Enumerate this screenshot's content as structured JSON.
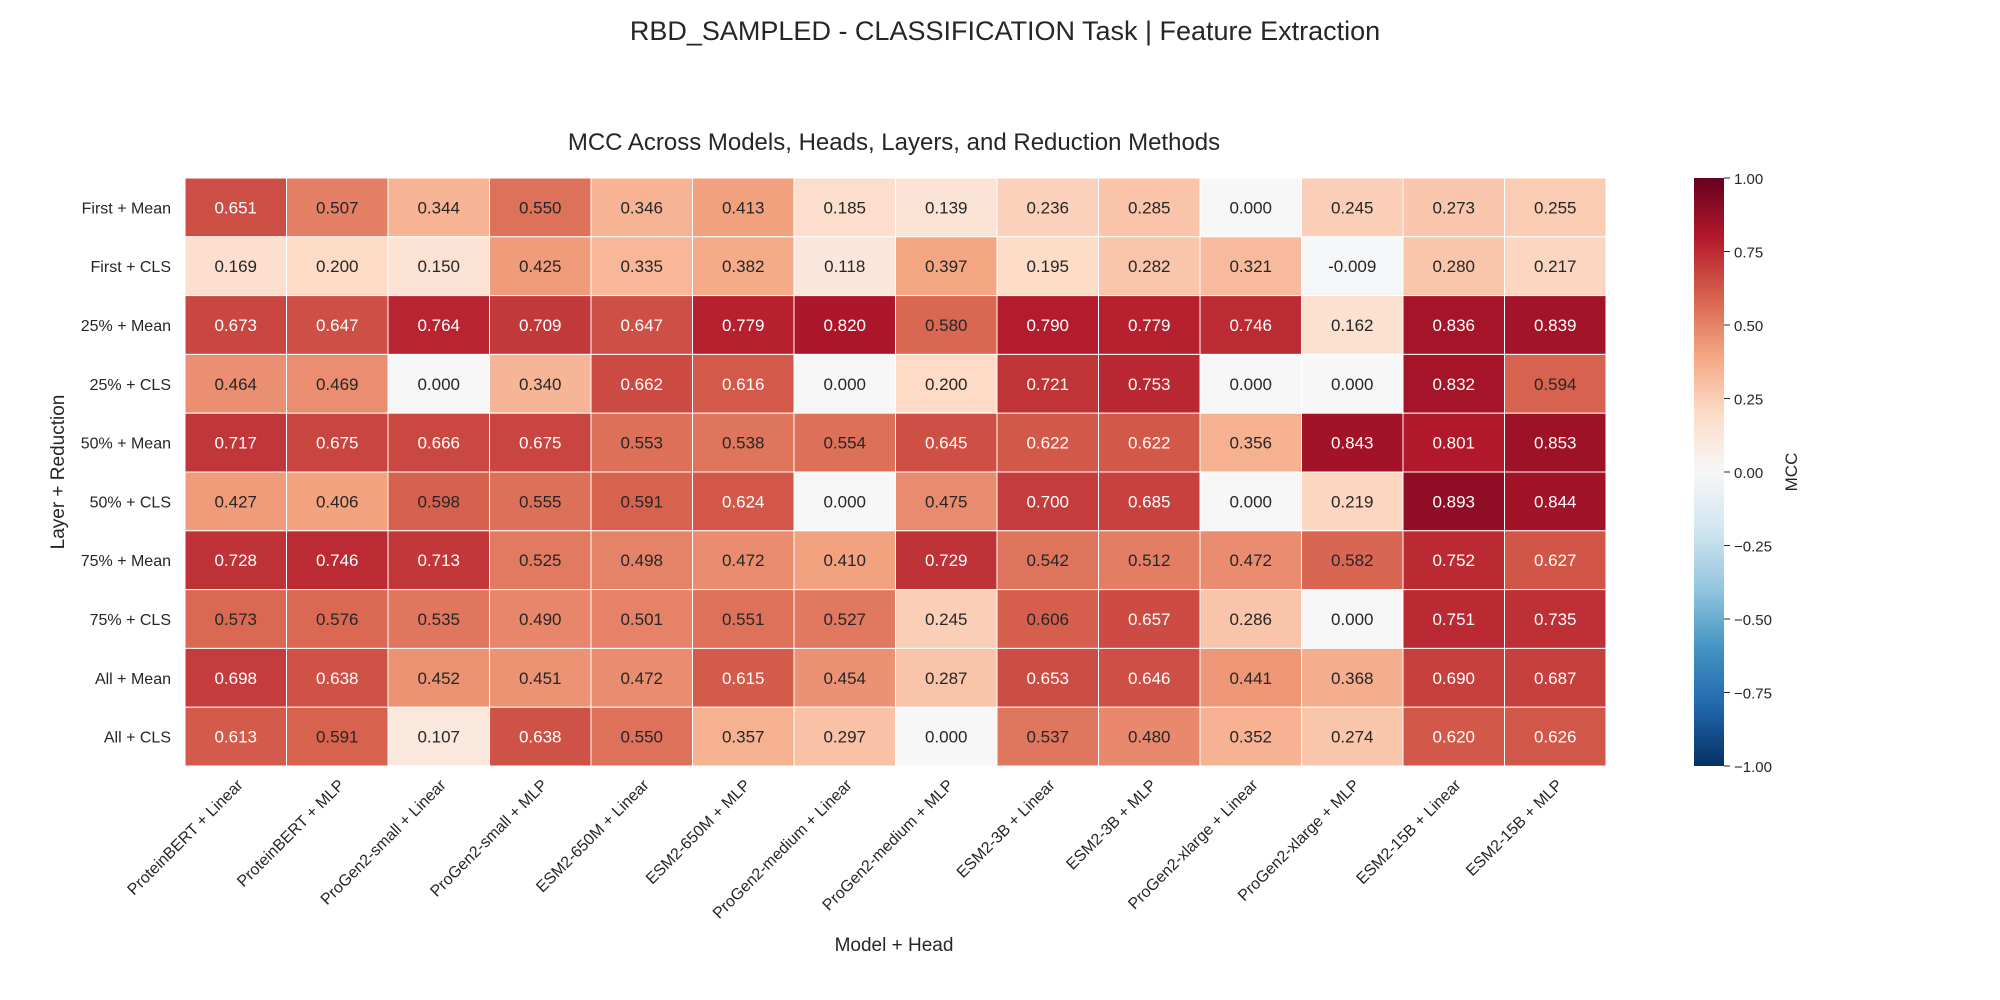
{
  "figure": {
    "suptitle": "RBD_SAMPLED - CLASSIFICATION Task | Feature Extraction"
  },
  "chart_data": {
    "type": "heatmap",
    "title": "MCC Across Models, Heads, Layers, and Reduction Methods",
    "xlabel": "Model + Head",
    "ylabel": "Layer + Reduction",
    "colorbar_label": "MCC",
    "vmin": -1.0,
    "vmax": 1.0,
    "colormap": "RdBu_r",
    "colorbar_ticks": [
      "1.00",
      "0.75",
      "0.50",
      "0.25",
      "0.00",
      "−0.25",
      "−0.50",
      "−0.75",
      "−1.00"
    ],
    "columns": [
      "ProteinBERT + Linear",
      "ProteinBERT + MLP",
      "ProGen2-small + Linear",
      "ProGen2-small + MLP",
      "ESM2-650M + Linear",
      "ESM2-650M + MLP",
      "ProGen2-medium + Linear",
      "ProGen2-medium + MLP",
      "ESM2-3B + Linear",
      "ESM2-3B + MLP",
      "ProGen2-xlarge + Linear",
      "ProGen2-xlarge + MLP",
      "ESM2-15B + Linear",
      "ESM2-15B + MLP"
    ],
    "rows": [
      "First + Mean",
      "First + CLS",
      "25% + Mean",
      "25% + CLS",
      "50% + Mean",
      "50% + CLS",
      "75% + Mean",
      "75% + CLS",
      "All + Mean",
      "All + CLS"
    ],
    "values": [
      [
        "0.651",
        "0.507",
        "0.344",
        "0.550",
        "0.346",
        "0.413",
        "0.185",
        "0.139",
        "0.236",
        "0.285",
        "0.000",
        "0.245",
        "0.273",
        "0.255"
      ],
      [
        "0.169",
        "0.200",
        "0.150",
        "0.425",
        "0.335",
        "0.382",
        "0.118",
        "0.397",
        "0.195",
        "0.282",
        "0.321",
        "-0.009",
        "0.280",
        "0.217"
      ],
      [
        "0.673",
        "0.647",
        "0.764",
        "0.709",
        "0.647",
        "0.779",
        "0.820",
        "0.580",
        "0.790",
        "0.779",
        "0.746",
        "0.162",
        "0.836",
        "0.839"
      ],
      [
        "0.464",
        "0.469",
        "0.000",
        "0.340",
        "0.662",
        "0.616",
        "0.000",
        "0.200",
        "0.721",
        "0.753",
        "0.000",
        "0.000",
        "0.832",
        "0.594"
      ],
      [
        "0.717",
        "0.675",
        "0.666",
        "0.675",
        "0.553",
        "0.538",
        "0.554",
        "0.645",
        "0.622",
        "0.622",
        "0.356",
        "0.843",
        "0.801",
        "0.853"
      ],
      [
        "0.427",
        "0.406",
        "0.598",
        "0.555",
        "0.591",
        "0.624",
        "0.000",
        "0.475",
        "0.700",
        "0.685",
        "0.000",
        "0.219",
        "0.893",
        "0.844"
      ],
      [
        "0.728",
        "0.746",
        "0.713",
        "0.525",
        "0.498",
        "0.472",
        "0.410",
        "0.729",
        "0.542",
        "0.512",
        "0.472",
        "0.582",
        "0.752",
        "0.627"
      ],
      [
        "0.573",
        "0.576",
        "0.535",
        "0.490",
        "0.501",
        "0.551",
        "0.527",
        "0.245",
        "0.606",
        "0.657",
        "0.286",
        "0.000",
        "0.751",
        "0.735"
      ],
      [
        "0.698",
        "0.638",
        "0.452",
        "0.451",
        "0.472",
        "0.615",
        "0.454",
        "0.287",
        "0.653",
        "0.646",
        "0.441",
        "0.368",
        "0.690",
        "0.687"
      ],
      [
        "0.613",
        "0.591",
        "0.107",
        "0.638",
        "0.550",
        "0.357",
        "0.297",
        "0.000",
        "0.537",
        "0.480",
        "0.352",
        "0.274",
        "0.620",
        "0.626"
      ]
    ]
  }
}
